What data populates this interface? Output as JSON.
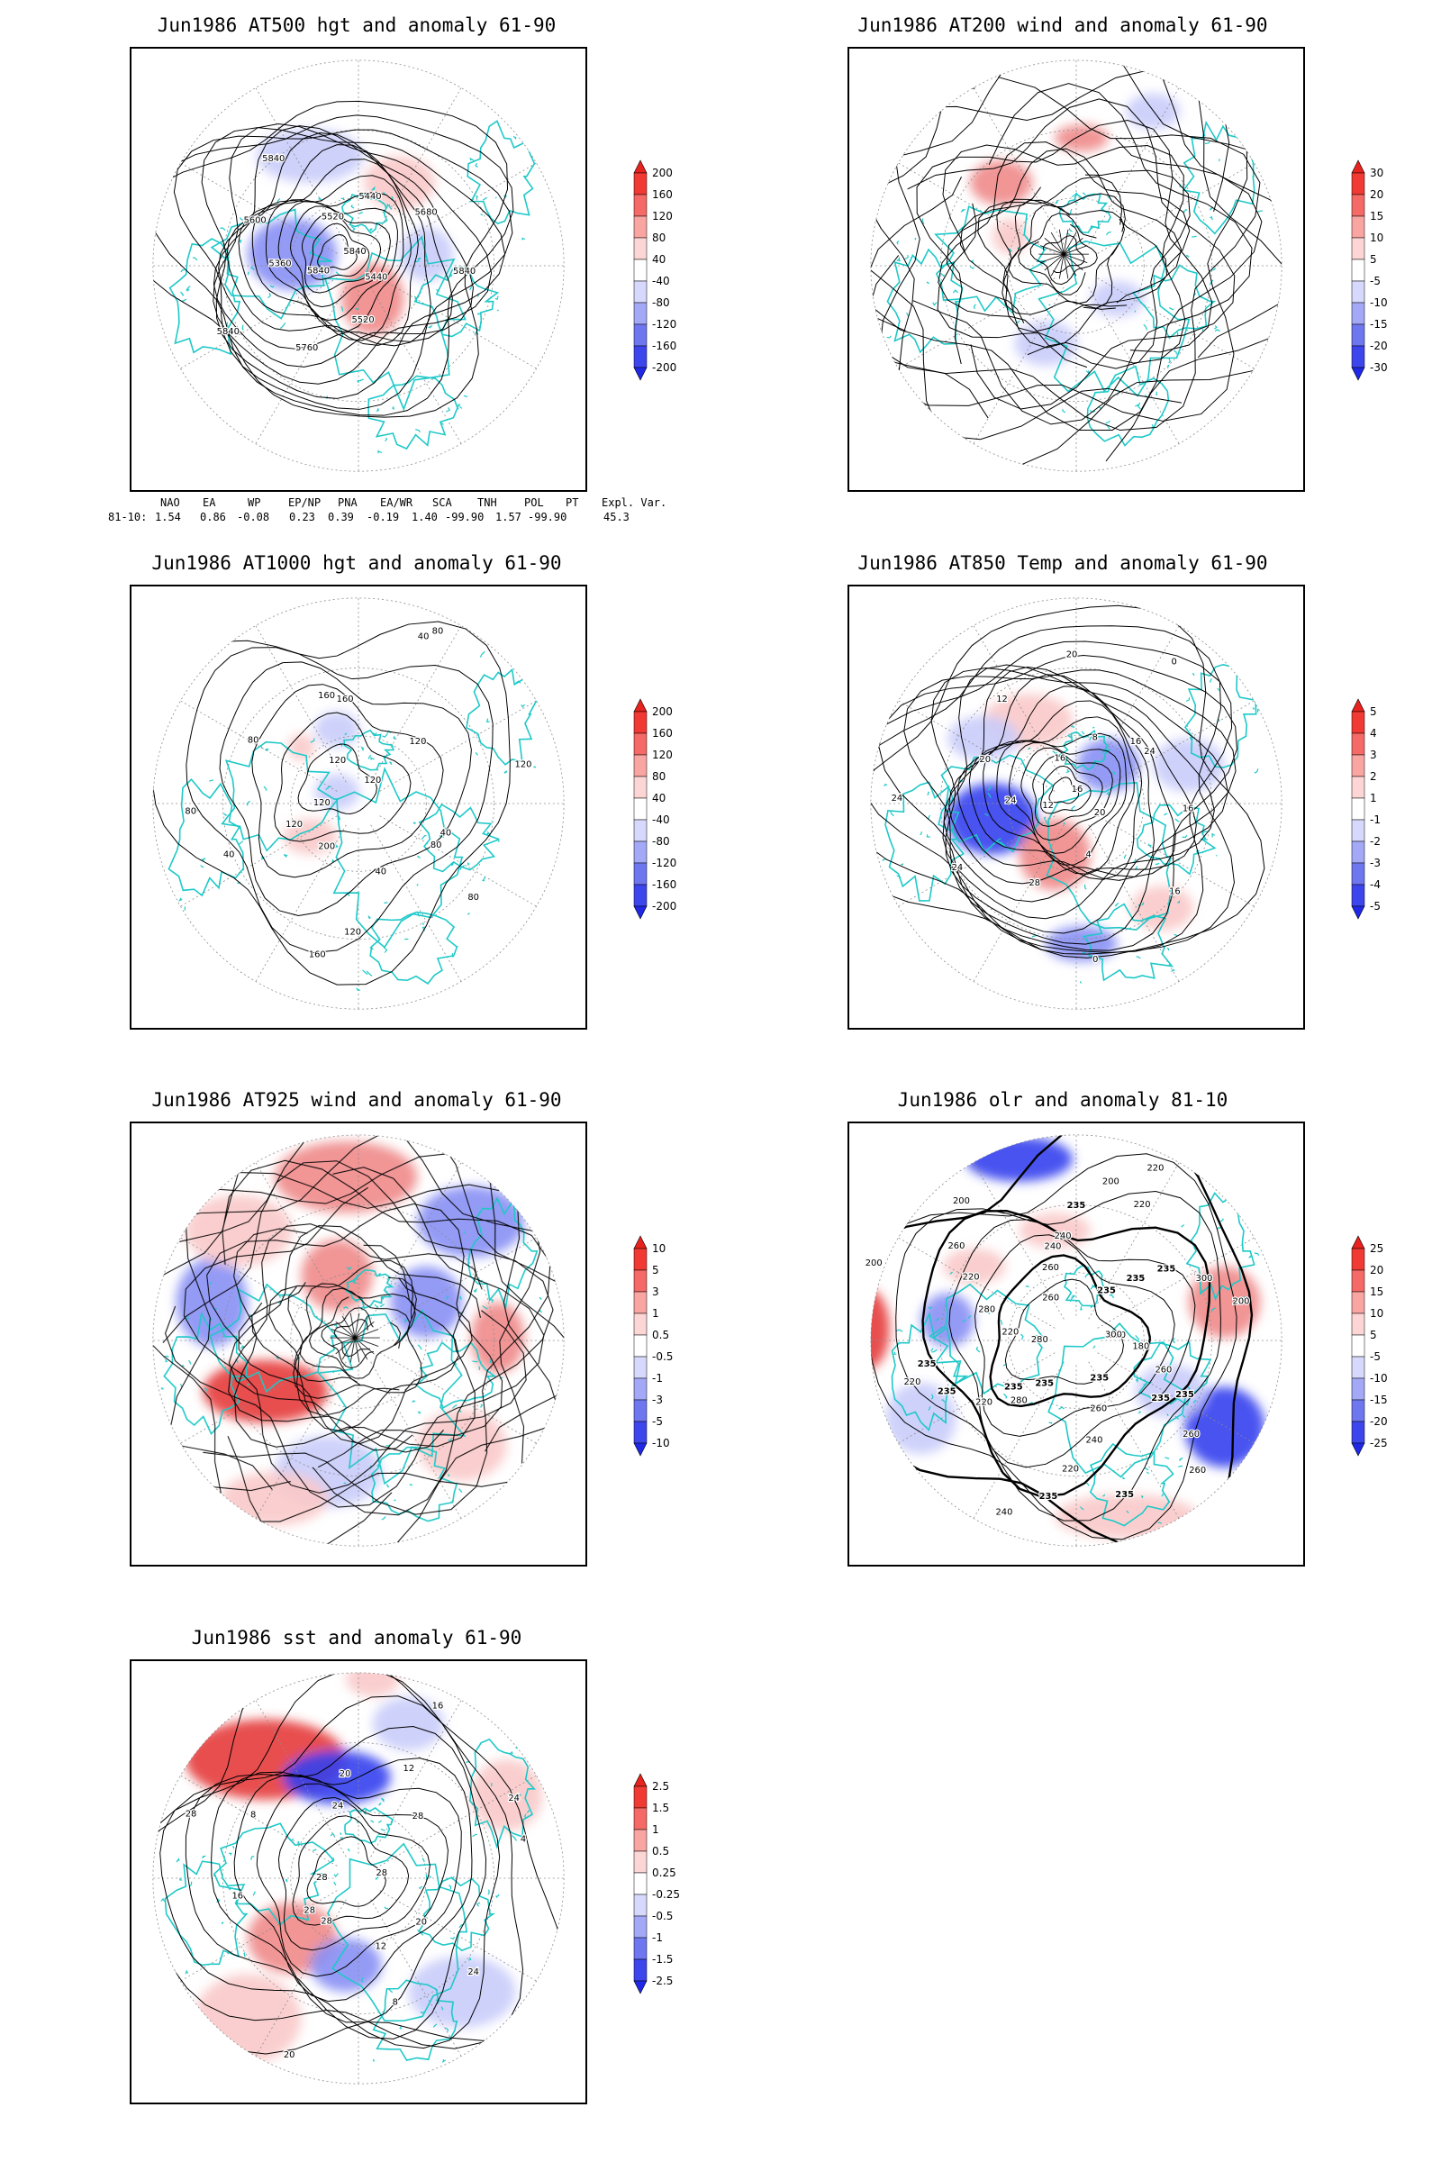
{
  "panels": [
    {
      "id": "p1",
      "title": "Jun1986 AT500 hgt and anomaly 61-90",
      "colorbar": [
        "200",
        "160",
        "120",
        "80",
        "40",
        "-40",
        "-80",
        "-120",
        "-160",
        "-200"
      ],
      "contour_labels": [
        "5840",
        "5840",
        "5520",
        "5440",
        "5360",
        "5440",
        "5520",
        "5600",
        "5680",
        "5760",
        "5840",
        "5840",
        "5840"
      ]
    },
    {
      "id": "p2",
      "title": "Jun1986 AT200 wind and anomaly 61-90",
      "colorbar": [
        "30",
        "20",
        "15",
        "10",
        "5",
        "-5",
        "-10",
        "-15",
        "-20",
        "-30"
      ],
      "contour_labels": []
    },
    {
      "id": "p3",
      "title": "Jun1986 AT1000 hgt and anomaly 61-90",
      "colorbar": [
        "200",
        "160",
        "120",
        "80",
        "40",
        "-40",
        "-80",
        "-120",
        "-160",
        "-200"
      ],
      "contour_labels": [
        "120",
        "120",
        "160",
        "80",
        "80",
        "40",
        "160",
        "120",
        "40",
        "40",
        "80",
        "40",
        "80",
        "120",
        "200",
        "160",
        "80",
        "120",
        "120",
        "120"
      ]
    },
    {
      "id": "p4",
      "title": "Jun1986 AT850 Temp and anomaly 61-90",
      "colorbar": [
        "5",
        "4",
        "3",
        "2",
        "1",
        "-1",
        "-2",
        "-3",
        "-4",
        "-5"
      ],
      "contour_labels": [
        "16",
        "12",
        "16",
        "20",
        "24",
        "8",
        "4",
        "20",
        "24",
        "28",
        "12",
        "16",
        "24",
        "20",
        "16",
        "24",
        "0",
        "0",
        "16"
      ]
    },
    {
      "id": "p5",
      "title": "Jun1986 AT925 wind and anomaly 61-90",
      "colorbar": [
        "10",
        "5",
        "3",
        "1",
        "0.5",
        "-0.5",
        "-1",
        "-3",
        "-5",
        "-10"
      ],
      "contour_labels": []
    },
    {
      "id": "p6",
      "title": "Jun1986 olr and anomaly 81-10",
      "colorbar": [
        "25",
        "20",
        "15",
        "10",
        "5",
        "-5",
        "-10",
        "-15",
        "-20",
        "-25"
      ],
      "contour_labels": [
        "260",
        "235",
        "240",
        "235",
        "235",
        "220",
        "235",
        "200",
        "260",
        "235",
        "220",
        "260",
        "220",
        "200",
        "235",
        "240",
        "260",
        "280",
        "235",
        "220",
        "200",
        "180",
        "220",
        "200",
        "235",
        "280",
        "300",
        "240",
        "260",
        "235",
        "220",
        "235",
        "240",
        "260",
        "300",
        "280",
        "235",
        "260",
        "220",
        "235",
        "235",
        "260"
      ]
    },
    {
      "id": "p7",
      "title": "Jun1986 sst and anomaly 61-90",
      "colorbar": [
        "2.5",
        "1.5",
        "1",
        "0.5",
        "0.25",
        "-0.25",
        "-0.5",
        "-1",
        "-1.5",
        "-2.5"
      ],
      "contour_labels": [
        "28",
        "28",
        "24",
        "20",
        "16",
        "12",
        "8",
        "28",
        "24",
        "20",
        "16",
        "12",
        "8",
        "4",
        "28",
        "20",
        "24",
        "28",
        "28"
      ]
    }
  ],
  "index_table": {
    "headers": [
      "NAO",
      "EA",
      "WP",
      "EP/NP",
      "PNA",
      "EA/WR",
      "SCA",
      "TNH",
      "POL",
      "PT",
      "Expl. Var."
    ],
    "row_label": "81-10:",
    "values": [
      "1.54",
      "0.86",
      "-0.08",
      "0.23",
      "0.39",
      "-0.19",
      "1.40",
      "-99.90",
      "1.57",
      "-99.90",
      "45.3"
    ]
  },
  "colors": {
    "land_outline": "#1ec8c8",
    "contour": "#000000",
    "positive": "#e83030",
    "negative": "#2f3ff0",
    "graticule": "#8c8c8c"
  }
}
